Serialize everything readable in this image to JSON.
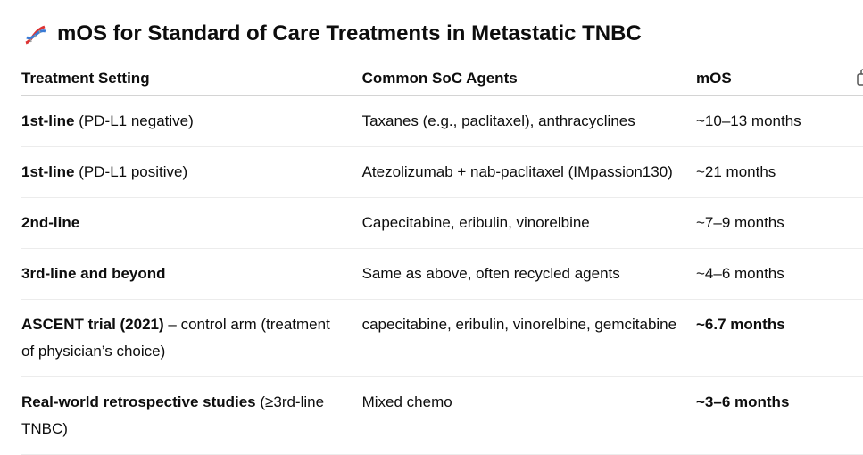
{
  "header": {
    "title": "mOS for Standard of Care Treatments in Metastatic TNBC"
  },
  "table": {
    "columns": [
      "Treatment Setting",
      "Common SoC Agents",
      "mOS"
    ],
    "rows": [
      [
        {
          "strong": "1st-line",
          "text": "(PD-L1 negative)"
        },
        {
          "text": "Taxanes (e.g., paclitaxel), anthracyclines"
        },
        {
          "text": "~10–13 months"
        }
      ],
      [
        {
          "strong": "1st-line",
          "text": "(PD-L1 positive)"
        },
        {
          "text": "Atezolizumab + nab-paclitaxel (IMpassion130)"
        },
        {
          "text": "~21 months"
        }
      ],
      [
        {
          "strong": "2nd-line"
        },
        {
          "text": "Capecitabine, eribulin, vinorelbine"
        },
        {
          "text": "~7–9 months"
        }
      ],
      [
        {
          "strong": "3rd-line and beyond"
        },
        {
          "text": "Same as above, often recycled agents"
        },
        {
          "text": "~4–6 months"
        }
      ],
      [
        {
          "strong": "ASCENT trial (2021)",
          "text": "– control arm (treatment of physician’s choice)"
        },
        {
          "text": "capecitabine, eribulin, vinorelbine, gemcitabine"
        },
        {
          "strong": "~6.7 months"
        }
      ],
      [
        {
          "strong": "Real-world retrospective studies",
          "text": "(≥3rd-line TNBC)"
        },
        {
          "text": "Mixed chemo"
        },
        {
          "strong": "~3–6 months"
        }
      ]
    ]
  }
}
